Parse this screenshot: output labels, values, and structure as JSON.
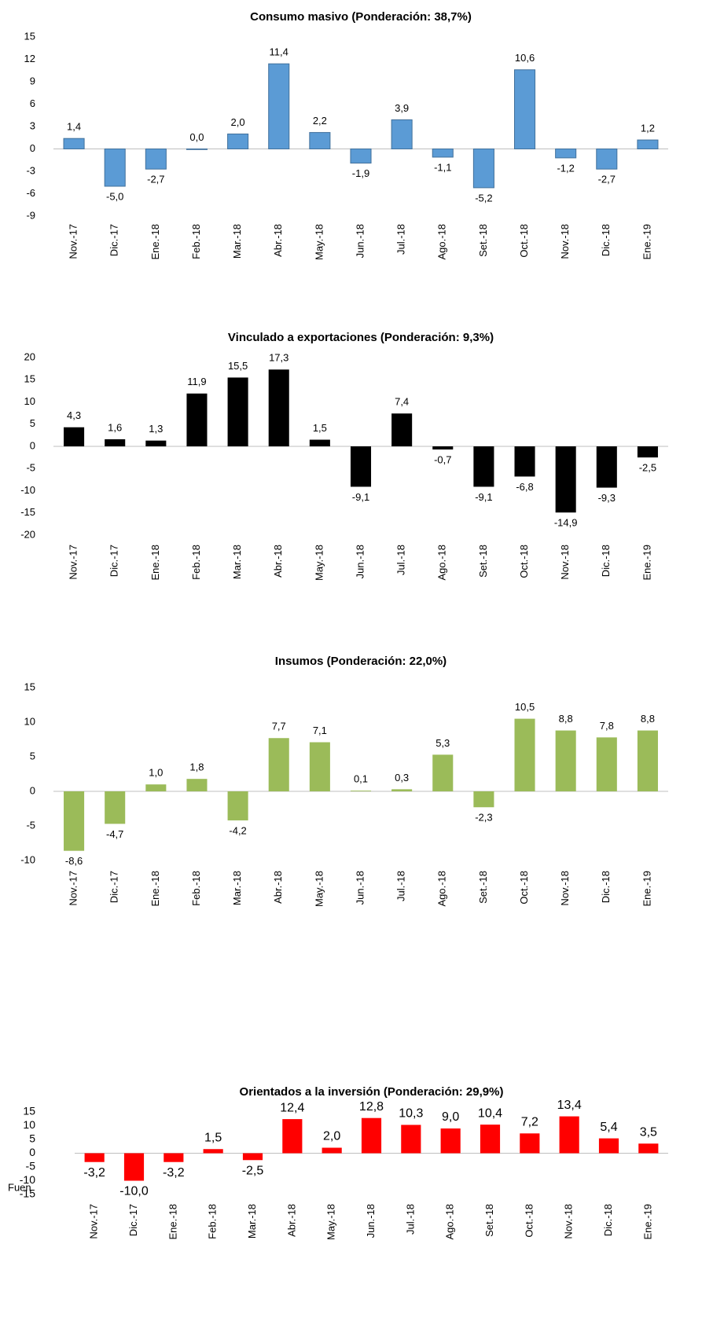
{
  "chart_data": [
    {
      "type": "bar",
      "title": "Consumo masivo (Ponderación: 38,7%)",
      "categories": [
        "Nov.-17",
        "Dic.-17",
        "Ene.-18",
        "Feb.-18",
        "Mar.-18",
        "Abr.-18",
        "May.-18",
        "Jun.-18",
        "Jul.-18",
        "Ago.-18",
        "Set.-18",
        "Oct.-18",
        "Nov.-18",
        "Dic.-18",
        "Ene.-19"
      ],
      "values": [
        1.4,
        -5.0,
        -2.7,
        0.0,
        2.0,
        11.4,
        2.2,
        -1.9,
        3.9,
        -1.1,
        -5.2,
        10.6,
        -1.2,
        -2.7,
        1.2
      ],
      "value_labels": [
        "1,4",
        "-5,0",
        "-2,7",
        "0,0",
        "2,0",
        "11,4",
        "2,2",
        "-1,9",
        "3,9",
        "-1,1",
        "-5,2",
        "10,6",
        "-1,2",
        "-2,7",
        "1,2"
      ],
      "color": "#5b9bd5",
      "ylim": [
        -9,
        15
      ],
      "yticks": [
        -9,
        -6,
        -3,
        0,
        3,
        6,
        9,
        12,
        15
      ]
    },
    {
      "type": "bar",
      "title": "Vinculado a exportaciones (Ponderación: 9,3%)",
      "categories": [
        "Nov.-17",
        "Dic.-17",
        "Ene.-18",
        "Feb.-18",
        "Mar.-18",
        "Abr.-18",
        "May.-18",
        "Jun.-18",
        "Jul.-18",
        "Ago.-18",
        "Set.-18",
        "Oct.-18",
        "Nov.-18",
        "Dic.-18",
        "Ene.-19"
      ],
      "values": [
        4.3,
        1.6,
        1.3,
        11.9,
        15.5,
        17.3,
        1.5,
        -9.1,
        7.4,
        -0.7,
        -9.1,
        -6.8,
        -14.9,
        -9.3,
        -2.5
      ],
      "value_labels": [
        "4,3",
        "1,6",
        "1,3",
        "11,9",
        "15,5",
        "17,3",
        "1,5",
        "-9,1",
        "7,4",
        "-0,7",
        "-9,1",
        "-6,8",
        "-14,9",
        "-9,3",
        "-2,5"
      ],
      "color": "#000000",
      "ylim": [
        -20,
        20
      ],
      "yticks": [
        -20,
        -15,
        -10,
        -5,
        0,
        5,
        10,
        15,
        20
      ]
    },
    {
      "type": "bar",
      "title": "Insumos (Ponderación: 22,0%)",
      "categories": [
        "Nov.-17",
        "Dic.-17",
        "Ene.-18",
        "Feb.-18",
        "Mar.-18",
        "Abr.-18",
        "May.-18",
        "Jun.-18",
        "Jul.-18",
        "Ago.-18",
        "Set.-18",
        "Oct.-18",
        "Nov.-18",
        "Dic.-18",
        "Ene.-19"
      ],
      "values": [
        -8.6,
        -4.7,
        1.0,
        1.8,
        -4.2,
        7.7,
        7.1,
        0.1,
        0.3,
        5.3,
        -2.3,
        10.5,
        8.8,
        7.8,
        8.8
      ],
      "value_labels": [
        "-8,6",
        "-4,7",
        "1,0",
        "1,8",
        "-4,2",
        "7,7",
        "7,1",
        "0,1",
        "0,3",
        "5,3",
        "-2,3",
        "10,5",
        "8,8",
        "7,8",
        "8,8"
      ],
      "color": "#9bbb59",
      "ylim": [
        -10,
        15
      ],
      "yticks": [
        -10,
        -5,
        0,
        5,
        10,
        15
      ]
    },
    {
      "type": "bar",
      "title": "Orientados a la inversión (Ponderación: 29,9%)",
      "categories": [
        "Nov.-17",
        "Dic.-17",
        "Ene.-18",
        "Feb.-18",
        "Mar.-18",
        "Abr.-18",
        "May.-18",
        "Jun.-18",
        "Jul.-18",
        "Ago.-18",
        "Set.-18",
        "Oct.-18",
        "Nov.-18",
        "Dic.-18",
        "Ene.-19"
      ],
      "values": [
        -3.2,
        -10.0,
        -3.2,
        1.5,
        -2.5,
        12.4,
        2.0,
        12.8,
        10.3,
        9.0,
        10.4,
        7.2,
        13.4,
        5.4,
        3.5
      ],
      "value_labels": [
        "-3,2",
        "-10,0",
        "-3,2",
        "1,5",
        "-2,5",
        "12,4",
        "2,0",
        "12,8",
        "10,3",
        "9,0",
        "10,4",
        "7,2",
        "13,4",
        "5,4",
        "3,5"
      ],
      "color": "#ff0000",
      "ylim": [
        -15,
        15
      ],
      "yticks": [
        -15,
        -10,
        -5,
        0,
        5,
        10,
        15
      ]
    }
  ],
  "footer_text": "Fuen"
}
